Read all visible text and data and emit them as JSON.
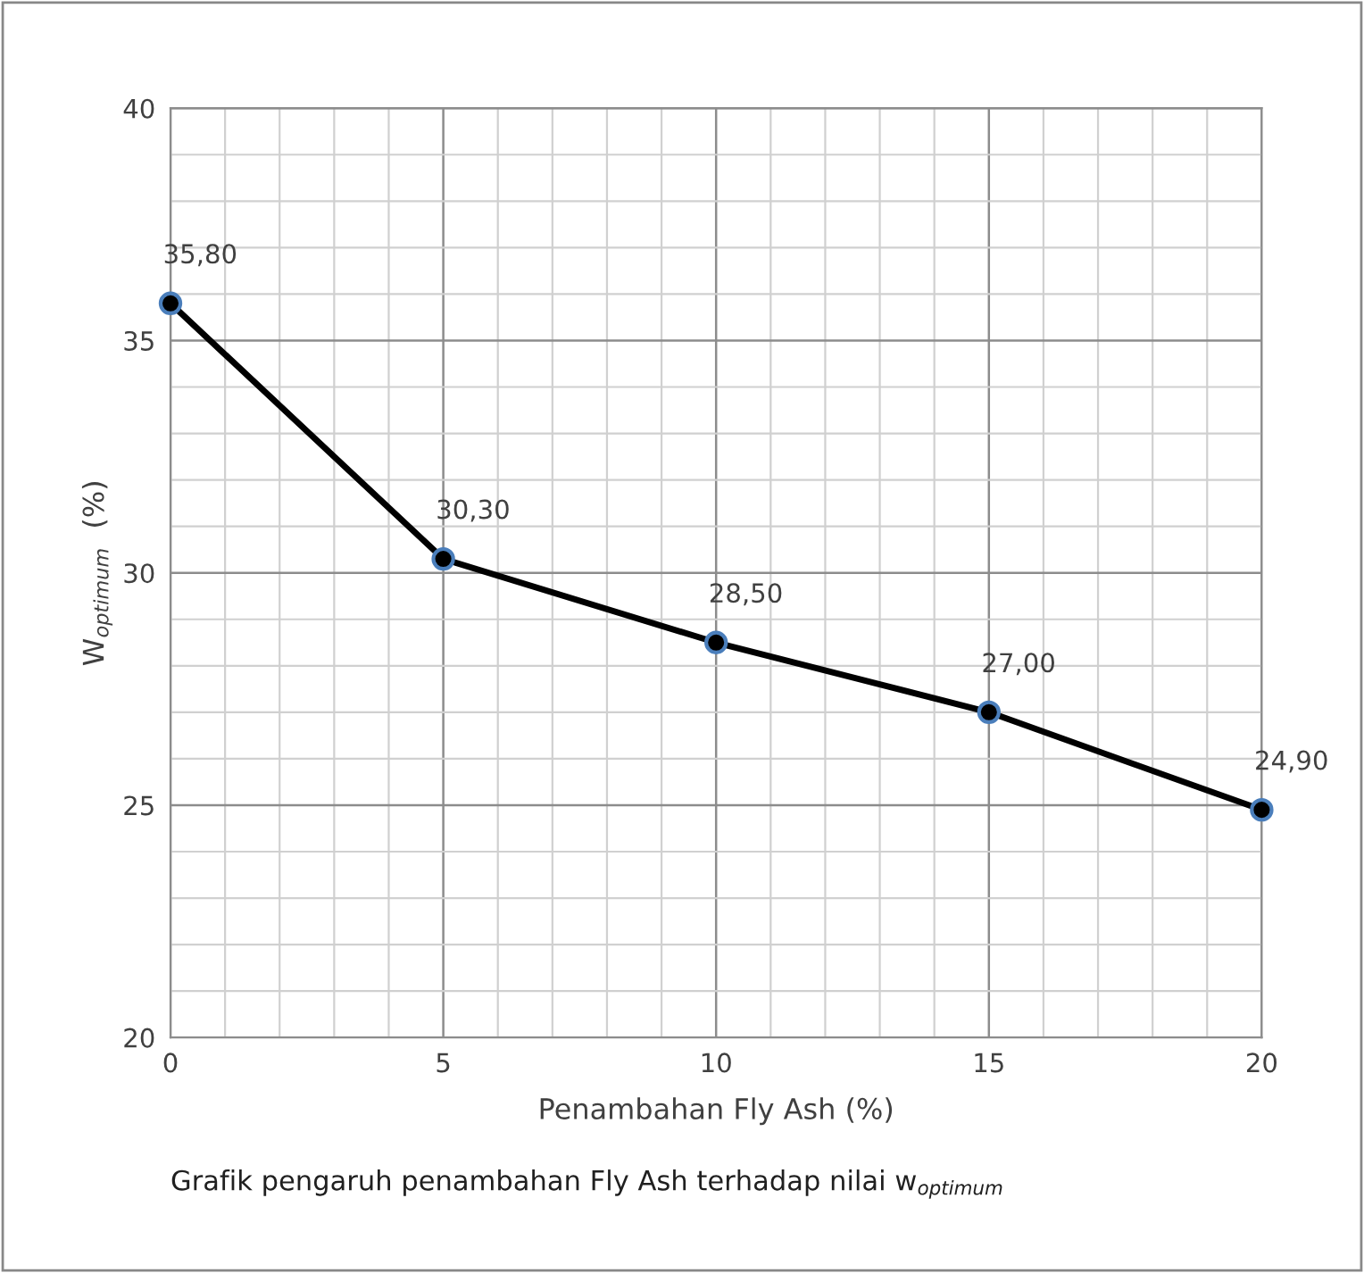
{
  "chart_data": {
    "type": "line",
    "xlabel": "Penambahan Fly Ash (%)",
    "ylabel": "W$_{optimum}$  (%)",
    "x": [
      0,
      5,
      10,
      15,
      20
    ],
    "series": [
      {
        "color": "#000000",
        "values": [
          35.8,
          30.3,
          28.5,
          27.0,
          24.9
        ],
        "value_labels": [
          "35,80",
          "30,30",
          "28,50",
          "27,00",
          "24,90"
        ]
      }
    ],
    "xlim": [
      0,
      20
    ],
    "xticks": [
      0,
      5,
      10,
      15,
      20
    ],
    "ylim": [
      20,
      40
    ],
    "yticks": [
      20,
      25,
      30,
      35,
      40
    ],
    "grid": true,
    "marker": "circle",
    "line_style": "solid",
    "annotations": [
      "Grafik pengaruh penambahan Fly Ash terhadap nilai w$_{optimum}$"
    ]
  }
}
